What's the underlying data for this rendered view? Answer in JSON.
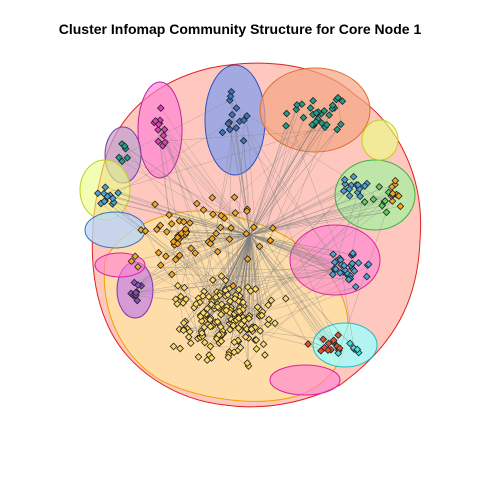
{
  "figure": {
    "title": "Cluster Infomap Community Structure for Core Node 1"
  },
  "legend": {},
  "colors": {
    "edge": "#808080",
    "node_outline": "#222222",
    "communities": {
      "yellow": {
        "fill": "#ffd966",
        "hull": "#ffe6a0"
      },
      "orange": {
        "fill": "#f5a623",
        "hull": "#ffb3a0"
      },
      "teal": {
        "fill": "#1f9e89",
        "hull": "#f4a582"
      },
      "blue": {
        "fill": "#3b73c5",
        "hull": "#7c9df0"
      },
      "steelblue": {
        "fill": "#4aa3d9",
        "hull": "#b9d7f5"
      },
      "violet": {
        "fill": "#8a4fc4",
        "hull": "#c47fe6"
      },
      "magenta": {
        "fill": "#e03fb8",
        "hull": "#ff7fd4"
      },
      "green": {
        "fill": "#5fd05f",
        "hull": "#a8f0a0"
      },
      "cyan": {
        "fill": "#40e0e0",
        "hull": "#a0ffff"
      },
      "red": {
        "fill": "#e05030",
        "hull": "#ff9a8a"
      },
      "lime": {
        "fill": "#c8f040",
        "hull": "#eaff80"
      },
      "grey": {
        "fill": "#9aa0b0",
        "hull": "#c0c4d0"
      }
    }
  }
}
